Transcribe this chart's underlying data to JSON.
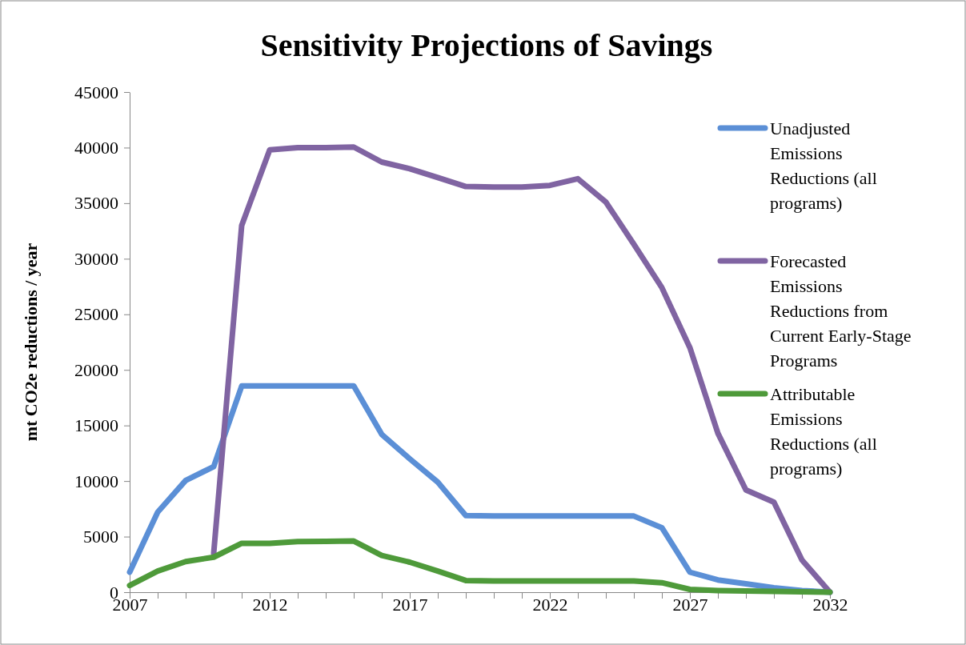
{
  "chart_data": {
    "type": "line",
    "title": "Sensitivity Projections of Savings",
    "ylabel": "mt CO2e reductions / year",
    "x": [
      2007,
      2008,
      2009,
      2010,
      2011,
      2012,
      2013,
      2014,
      2015,
      2016,
      2017,
      2018,
      2019,
      2020,
      2021,
      2022,
      2023,
      2024,
      2025,
      2026,
      2027,
      2028,
      2029,
      2030,
      2031,
      2032
    ],
    "series": [
      {
        "name": "Unadjusted Emissions Reductions (all programs)",
        "color": "#5b8fd6",
        "values": [
          1800,
          7200,
          10050,
          11300,
          18550,
          18550,
          18550,
          18550,
          18550,
          14200,
          12000,
          9900,
          6900,
          6850,
          6850,
          6850,
          6850,
          6850,
          6850,
          5800,
          1800,
          1100,
          750,
          400,
          150,
          0
        ]
      },
      {
        "name": "Forecasted Emissions Reductions from Current Early-Stage Programs",
        "color": "#8064a2",
        "values": [
          null,
          null,
          null,
          3500,
          33000,
          39800,
          40000,
          40000,
          40050,
          38700,
          38100,
          37300,
          36500,
          36450,
          36450,
          36600,
          37200,
          35100,
          31300,
          27400,
          22000,
          14300,
          9200,
          8100,
          2900,
          0
        ]
      },
      {
        "name": "Attributable Emissions Reductions (all programs)",
        "color": "#4e9a3a",
        "values": [
          600,
          1900,
          2750,
          3150,
          4400,
          4400,
          4550,
          4580,
          4600,
          3300,
          2700,
          1900,
          1050,
          1000,
          1000,
          1000,
          1000,
          1000,
          1000,
          850,
          250,
          150,
          100,
          80,
          30,
          0
        ]
      }
    ],
    "xlim": [
      2007,
      2032
    ],
    "xticks": [
      2007,
      {
        "value": 2008,
        "label": null
      },
      {
        "value": 2009,
        "label": null
      },
      {
        "value": 2010,
        "label": null
      },
      {
        "value": 2011,
        "label": null
      },
      2012,
      {
        "value": 2013,
        "label": null
      },
      {
        "value": 2014,
        "label": null
      },
      {
        "value": 2015,
        "label": null
      },
      {
        "value": 2016,
        "label": null
      },
      2017,
      {
        "value": 2018,
        "label": null
      },
      {
        "value": 2019,
        "label": null
      },
      {
        "value": 2020,
        "label": null
      },
      {
        "value": 2021,
        "label": null
      },
      2022,
      {
        "value": 2023,
        "label": null
      },
      {
        "value": 2024,
        "label": null
      },
      {
        "value": 2025,
        "label": null
      },
      {
        "value": 2026,
        "label": null
      },
      2027,
      {
        "value": 2028,
        "label": null
      },
      {
        "value": 2029,
        "label": null
      },
      {
        "value": 2030,
        "label": null
      },
      {
        "value": 2031,
        "label": null
      },
      2032
    ],
    "ylim": [
      0,
      45000
    ],
    "yticks": [
      0,
      5000,
      10000,
      15000,
      20000,
      25000,
      30000,
      35000,
      40000,
      45000
    ],
    "grid": false,
    "legend": "right",
    "marker": "none",
    "line_style": "solid"
  }
}
